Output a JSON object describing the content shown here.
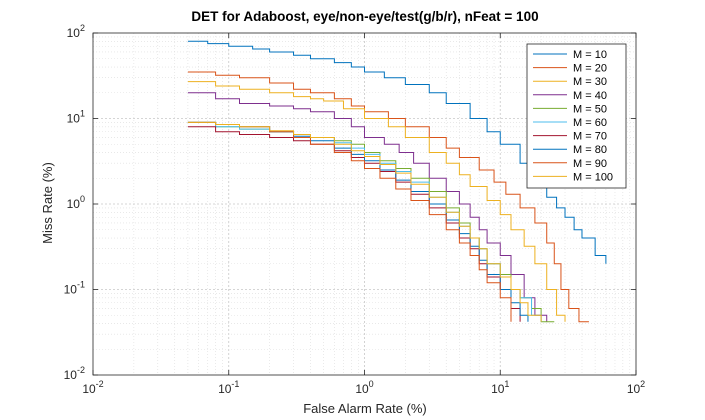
{
  "chart_data": {
    "type": "line",
    "title": "DET for Adaboost, eye/non-eye/test(g/b/r), nFeat = 100",
    "xlabel": "False Alarm Rate (%)",
    "ylabel": "Miss Rate (%)",
    "xscale": "log",
    "yscale": "log",
    "xlim": [
      0.01,
      100
    ],
    "ylim": [
      0.01,
      100
    ],
    "xticks": [
      {
        "base": "10",
        "exp": "-2"
      },
      {
        "base": "10",
        "exp": "-1"
      },
      {
        "base": "10",
        "exp": "0"
      },
      {
        "base": "10",
        "exp": "1"
      },
      {
        "base": "10",
        "exp": "2"
      }
    ],
    "yticks": [
      {
        "base": "10",
        "exp": "-2"
      },
      {
        "base": "10",
        "exp": "-1"
      },
      {
        "base": "10",
        "exp": "0"
      },
      {
        "base": "10",
        "exp": "1"
      },
      {
        "base": "10",
        "exp": "2"
      }
    ],
    "grid": true,
    "legend_position": "top-right",
    "series": [
      {
        "name": "M =  10",
        "color": "#0072BD",
        "x": [
          0.05,
          0.07,
          0.1,
          0.15,
          0.2,
          0.3,
          0.4,
          0.6,
          0.8,
          1.0,
          1.4,
          2.0,
          3.0,
          4.0,
          6.0,
          8.0,
          10,
          14,
          18,
          22,
          26,
          30,
          35,
          40,
          50,
          60
        ],
        "y": [
          80,
          75,
          70,
          65,
          60,
          55,
          50,
          45,
          40,
          35,
          30,
          25,
          20,
          15,
          10,
          7,
          5,
          3,
          2,
          1.2,
          0.9,
          0.7,
          0.5,
          0.4,
          0.25,
          0.2
        ]
      },
      {
        "name": "M =  20",
        "color": "#D95319",
        "x": [
          0.05,
          0.08,
          0.12,
          0.2,
          0.3,
          0.4,
          0.6,
          0.8,
          1.0,
          1.5,
          2.0,
          3.0,
          4.0,
          5.0,
          7.0,
          9.0,
          11,
          14,
          18,
          22,
          25,
          28,
          32,
          38,
          45
        ],
        "y": [
          35,
          32,
          30,
          26,
          22,
          20,
          17,
          14,
          12,
          10,
          8,
          6,
          4.5,
          3.5,
          2.5,
          1.8,
          1.3,
          0.9,
          0.6,
          0.35,
          0.2,
          0.1,
          0.06,
          0.042,
          0.042
        ]
      },
      {
        "name": "M =  30",
        "color": "#EDB120",
        "x": [
          0.05,
          0.08,
          0.12,
          0.2,
          0.3,
          0.4,
          0.5,
          0.7,
          1.0,
          1.5,
          2.0,
          3.0,
          4.0,
          5.0,
          6.0,
          8.0,
          10,
          12,
          15,
          18,
          22,
          26,
          30
        ],
        "y": [
          27,
          24,
          22,
          20,
          18,
          17,
          16,
          13,
          10,
          8,
          6,
          4,
          3,
          2.2,
          1.6,
          1.1,
          0.75,
          0.5,
          0.32,
          0.2,
          0.1,
          0.05,
          0.042
        ]
      },
      {
        "name": "M =  40",
        "color": "#7E2F8E",
        "x": [
          0.05,
          0.08,
          0.12,
          0.2,
          0.3,
          0.4,
          0.6,
          0.8,
          1.0,
          1.4,
          1.8,
          2.3,
          3.0,
          4.0,
          5.0,
          6.0,
          7.0,
          8.0,
          10,
          12,
          15,
          18,
          22
        ],
        "y": [
          20,
          17,
          15,
          14,
          13,
          12,
          10,
          8,
          6,
          5,
          4,
          3,
          2,
          1.4,
          1.0,
          0.7,
          0.5,
          0.35,
          0.25,
          0.15,
          0.08,
          0.05,
          0.042
        ]
      },
      {
        "name": "M =  50",
        "color": "#77AC30",
        "x": [
          0.05,
          0.08,
          0.12,
          0.2,
          0.3,
          0.4,
          0.6,
          0.8,
          1.0,
          1.3,
          1.7,
          2.2,
          3.0,
          4.0,
          5.0,
          6.0,
          7.0,
          8.0,
          10,
          12,
          14,
          17,
          20,
          25
        ],
        "y": [
          9,
          8,
          7.5,
          7,
          6.5,
          6,
          5.5,
          5,
          4,
          3.2,
          2.6,
          2.0,
          1.4,
          0.9,
          0.6,
          0.4,
          0.3,
          0.2,
          0.15,
          0.1,
          0.08,
          0.06,
          0.042,
          0.042
        ]
      },
      {
        "name": "M =  60",
        "color": "#4DBEEE",
        "x": [
          0.05,
          0.08,
          0.12,
          0.2,
          0.3,
          0.4,
          0.6,
          0.8,
          1.0,
          1.3,
          1.7,
          2.2,
          3.0,
          4.0,
          5.0,
          6.0,
          7.0,
          8.0,
          10,
          12,
          14,
          17,
          20
        ],
        "y": [
          9,
          8,
          7.5,
          7,
          6.5,
          6,
          5.2,
          4.5,
          3.8,
          3.0,
          2.4,
          1.8,
          1.2,
          0.8,
          0.55,
          0.4,
          0.3,
          0.2,
          0.14,
          0.1,
          0.08,
          0.05,
          0.042
        ]
      },
      {
        "name": "M =  70",
        "color": "#A2142F",
        "x": [
          0.05,
          0.08,
          0.12,
          0.2,
          0.3,
          0.4,
          0.6,
          0.8,
          1.0,
          1.3,
          1.7,
          2.2,
          3.0,
          4.0,
          5.0,
          6.0,
          7.0,
          8.0,
          10,
          12,
          14
        ],
        "y": [
          8,
          7,
          6.5,
          6,
          5.5,
          5,
          4.2,
          3.5,
          3.0,
          2.4,
          1.8,
          1.3,
          0.9,
          0.6,
          0.4,
          0.3,
          0.2,
          0.14,
          0.1,
          0.06,
          0.042
        ]
      },
      {
        "name": "M =  80",
        "color": "#0072BD",
        "x": [
          0.05,
          0.08,
          0.12,
          0.2,
          0.3,
          0.4,
          0.6,
          0.8,
          1.0,
          1.3,
          1.7,
          2.2,
          3.0,
          4.0,
          5.0,
          6.0,
          7.0,
          8.0,
          10,
          12,
          14,
          16
        ],
        "y": [
          9,
          8.5,
          8,
          7,
          6.2,
          5.5,
          4.5,
          3.8,
          3.2,
          2.5,
          1.9,
          1.4,
          1.0,
          0.65,
          0.45,
          0.32,
          0.22,
          0.15,
          0.1,
          0.07,
          0.05,
          0.042
        ]
      },
      {
        "name": "M =  90",
        "color": "#D95319",
        "x": [
          0.05,
          0.08,
          0.12,
          0.2,
          0.3,
          0.4,
          0.6,
          0.8,
          1.0,
          1.3,
          1.7,
          2.2,
          3.0,
          4.0,
          5.0,
          6.0,
          7.0,
          8.0,
          10,
          12
        ],
        "y": [
          9,
          8.5,
          8,
          7,
          6,
          5,
          4,
          3.2,
          2.6,
          2.0,
          1.5,
          1.1,
          0.75,
          0.5,
          0.35,
          0.25,
          0.17,
          0.12,
          0.08,
          0.042
        ]
      },
      {
        "name": "M = 100",
        "color": "#EDB120",
        "x": [
          0.05,
          0.08,
          0.12,
          0.2,
          0.3,
          0.4,
          0.6,
          0.8,
          1.0,
          1.3,
          1.7,
          2.2,
          3.0,
          4.0,
          5.0,
          6.0,
          7.0,
          8.0,
          10,
          12,
          14,
          16,
          20
        ],
        "y": [
          9,
          8.5,
          8,
          7.2,
          6.5,
          6,
          5,
          4.2,
          3.6,
          2.9,
          2.3,
          1.7,
          1.2,
          0.8,
          0.55,
          0.4,
          0.3,
          0.2,
          0.14,
          0.1,
          0.07,
          0.05,
          0.042
        ]
      }
    ]
  }
}
